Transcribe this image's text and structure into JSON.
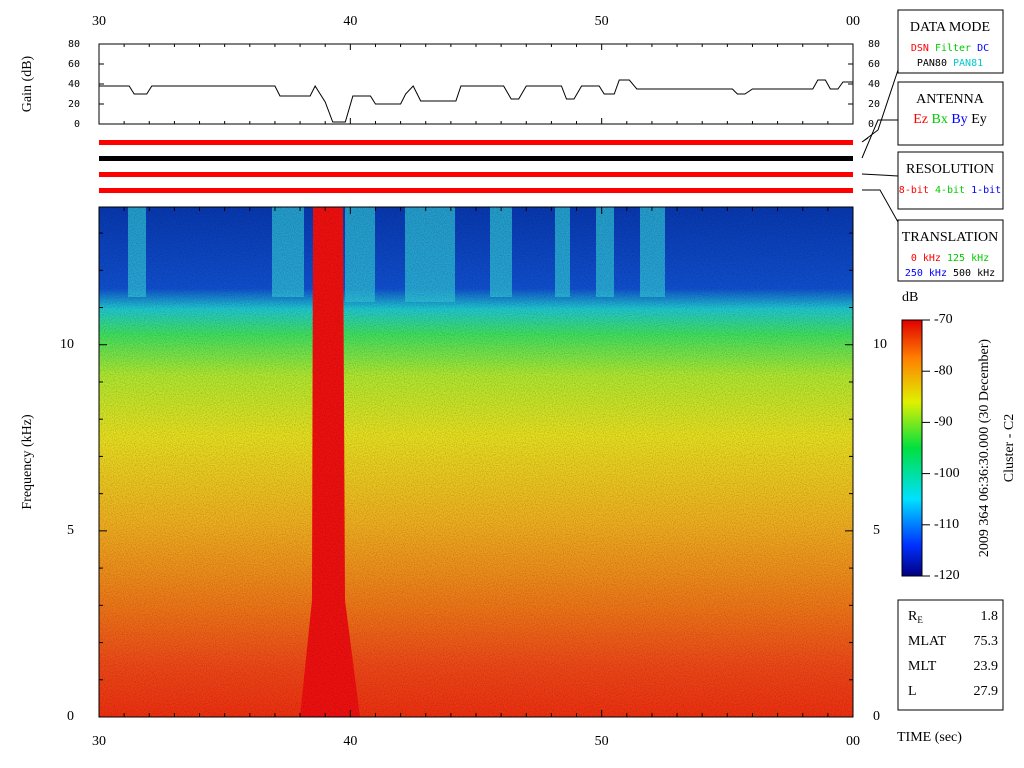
{
  "x_axis": {
    "label": "TIME (sec)",
    "xlim": [
      30,
      60
    ],
    "ticks": [
      30,
      40,
      50,
      {
        "value": 60,
        "label": "00"
      }
    ],
    "minor": [
      31,
      32,
      33,
      34,
      35,
      36,
      37,
      38,
      39,
      41,
      42,
      43,
      44,
      45,
      46,
      47,
      48,
      49,
      51,
      52,
      53,
      54,
      55,
      56,
      57,
      58,
      59
    ]
  },
  "gain": {
    "type": "line",
    "label": "Gain (dB)",
    "ylim": [
      0,
      80
    ],
    "yticks": [
      0,
      20,
      40,
      60,
      80
    ],
    "color": "#000000",
    "x": [
      30,
      31.2,
      31.4,
      31.9,
      32.1,
      37.0,
      37.2,
      38.4,
      38.6,
      39.0,
      39.3,
      39.8,
      40.1,
      40.8,
      41.0,
      42.0,
      42.2,
      42.5,
      42.8,
      44.2,
      44.4,
      46.1,
      46.4,
      46.7,
      47.0,
      48.4,
      48.6,
      48.9,
      49.2,
      49.9,
      50.1,
      50.5,
      50.7,
      51.1,
      51.4,
      55.2,
      55.4,
      55.7,
      56.0,
      57.0,
      57.2,
      58.4,
      58.6,
      58.9,
      59.1,
      59.4,
      59.6,
      60
    ],
    "values": [
      38,
      38,
      30,
      30,
      38,
      38,
      28,
      28,
      38,
      22,
      2,
      2,
      28,
      28,
      20,
      20,
      30,
      38,
      23,
      23,
      38,
      38,
      25,
      25,
      38,
      38,
      25,
      25,
      38,
      38,
      30,
      30,
      44,
      44,
      35,
      35,
      30,
      30,
      35,
      35,
      35,
      35,
      44,
      44,
      35,
      35,
      42,
      42
    ]
  },
  "spectrogram": {
    "ylabel": "Frequency (kHz)",
    "ylim": [
      0,
      13.7
    ],
    "yticks": [
      0,
      5,
      10
    ],
    "minor": [
      1,
      2,
      3,
      4,
      6,
      7,
      8,
      9,
      11,
      12,
      13
    ]
  },
  "colorbar": {
    "unit": "dB",
    "lim": [
      -120,
      -70
    ],
    "ticks": [
      -120,
      -110,
      -100,
      -90,
      -80,
      -70
    ]
  },
  "side_title": "2009 364 06:36:30.000 (30 December)",
  "spacecraft": "Cluster - C2",
  "data_mode": {
    "title": "DATA MODE",
    "rows": [
      [
        {
          "text": "DSN",
          "color": "#ff0000"
        },
        {
          "text": "Filter",
          "color": "#00cc00"
        },
        {
          "text": "DC",
          "color": "#0000ff"
        }
      ],
      [
        {
          "text": "PAN80",
          "color": "#000000"
        },
        {
          "text": "PAN81",
          "color": "#00cccc"
        }
      ]
    ]
  },
  "antenna": {
    "title": "ANTENNA",
    "rows": [
      [
        {
          "text": "Ez",
          "color": "#ff0000"
        },
        {
          "text": "Bx",
          "color": "#00cc00"
        },
        {
          "text": "By",
          "color": "#0000ff"
        },
        {
          "text": "Ey",
          "color": "#000000"
        }
      ]
    ]
  },
  "resolution": {
    "title": "RESOLUTION",
    "rows": [
      [
        {
          "text": "8-bit",
          "color": "#ff0000"
        },
        {
          "text": "4-bit",
          "color": "#00cc00"
        },
        {
          "text": "1-bit",
          "color": "#0000ff"
        }
      ]
    ]
  },
  "translation": {
    "title": "TRANSLATION",
    "rows": [
      [
        {
          "text": "0 kHz",
          "color": "#ff0000"
        },
        {
          "text": "125 kHz",
          "color": "#00cc00"
        }
      ],
      [
        {
          "text": "250 kHz",
          "color": "#0000ff"
        },
        {
          "text": "500 kHz",
          "color": "#000000"
        }
      ]
    ]
  },
  "info": [
    {
      "label": "R",
      "sub": "E",
      "value": 1.8
    },
    {
      "label": "MLAT",
      "value": 75.3
    },
    {
      "label": "MLT",
      "value": 23.9
    },
    {
      "label": "L",
      "value": 27.9
    }
  ]
}
